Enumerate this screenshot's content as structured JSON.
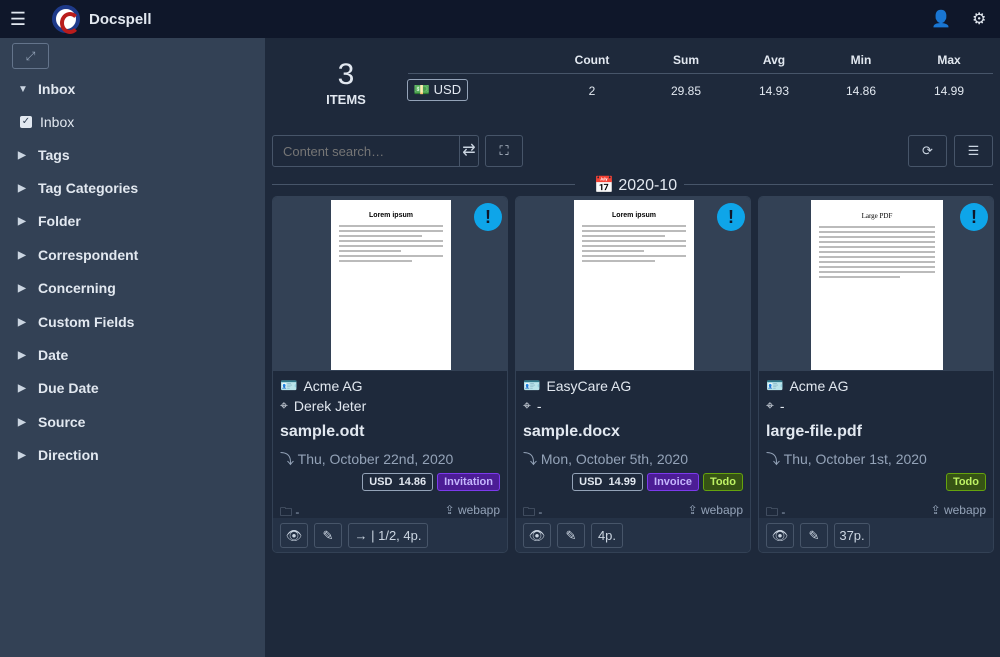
{
  "app": {
    "name": "Docspell",
    "menu_icon": "hamburger-icon",
    "user_icon": "user-icon",
    "settings_icon": "gears-icon"
  },
  "sidebar": {
    "items": [
      {
        "label": "Inbox",
        "open": true
      },
      {
        "label": "Inbox",
        "checked": true
      },
      {
        "label": "Tags"
      },
      {
        "label": "Tag Categories"
      },
      {
        "label": "Folder"
      },
      {
        "label": "Correspondent"
      },
      {
        "label": "Concerning"
      },
      {
        "label": "Custom Fields"
      },
      {
        "label": "Date"
      },
      {
        "label": "Due Date"
      },
      {
        "label": "Source"
      },
      {
        "label": "Direction"
      }
    ]
  },
  "summary": {
    "count": "3",
    "items_label": "ITEMS",
    "field": "USD",
    "headers": [
      "Count",
      "Sum",
      "Avg",
      "Min",
      "Max"
    ],
    "values": [
      "2",
      "29.85",
      "14.93",
      "14.86",
      "14.99"
    ]
  },
  "search": {
    "placeholder": "Content search…"
  },
  "group": {
    "label": "2020-10"
  },
  "cards": [
    {
      "preview_title": "Lorem ipsum",
      "correspondent": "Acme AG",
      "concerning": "Derek Jeter",
      "name": "sample.odt",
      "date": "Thu, October 22nd, 2020",
      "amount_currency": "USD",
      "amount": "14.86",
      "tags": [
        {
          "label": "Invitation",
          "color": "#7c3aed"
        }
      ],
      "folder": "-",
      "source": "webapp",
      "pages": "1/2, 4p."
    },
    {
      "preview_title": "Lorem ipsum",
      "correspondent": "EasyCare AG",
      "concerning": "-",
      "name": "sample.docx",
      "date": "Mon, October 5th, 2020",
      "amount_currency": "USD",
      "amount": "14.99",
      "tags": [
        {
          "label": "Invoice",
          "color": "#7c3aed"
        },
        {
          "label": "Todo",
          "color": "#65a30d"
        }
      ],
      "folder": "-",
      "source": "webapp",
      "pages": "4p."
    },
    {
      "preview_title": "Large PDF",
      "correspondent": "Acme AG",
      "concerning": "-",
      "name": "large-file.pdf",
      "date": "Thu, October 1st, 2020",
      "tags": [
        {
          "label": "Todo",
          "color": "#65a30d"
        }
      ],
      "folder": "-",
      "source": "webapp",
      "pages": "37p."
    }
  ]
}
